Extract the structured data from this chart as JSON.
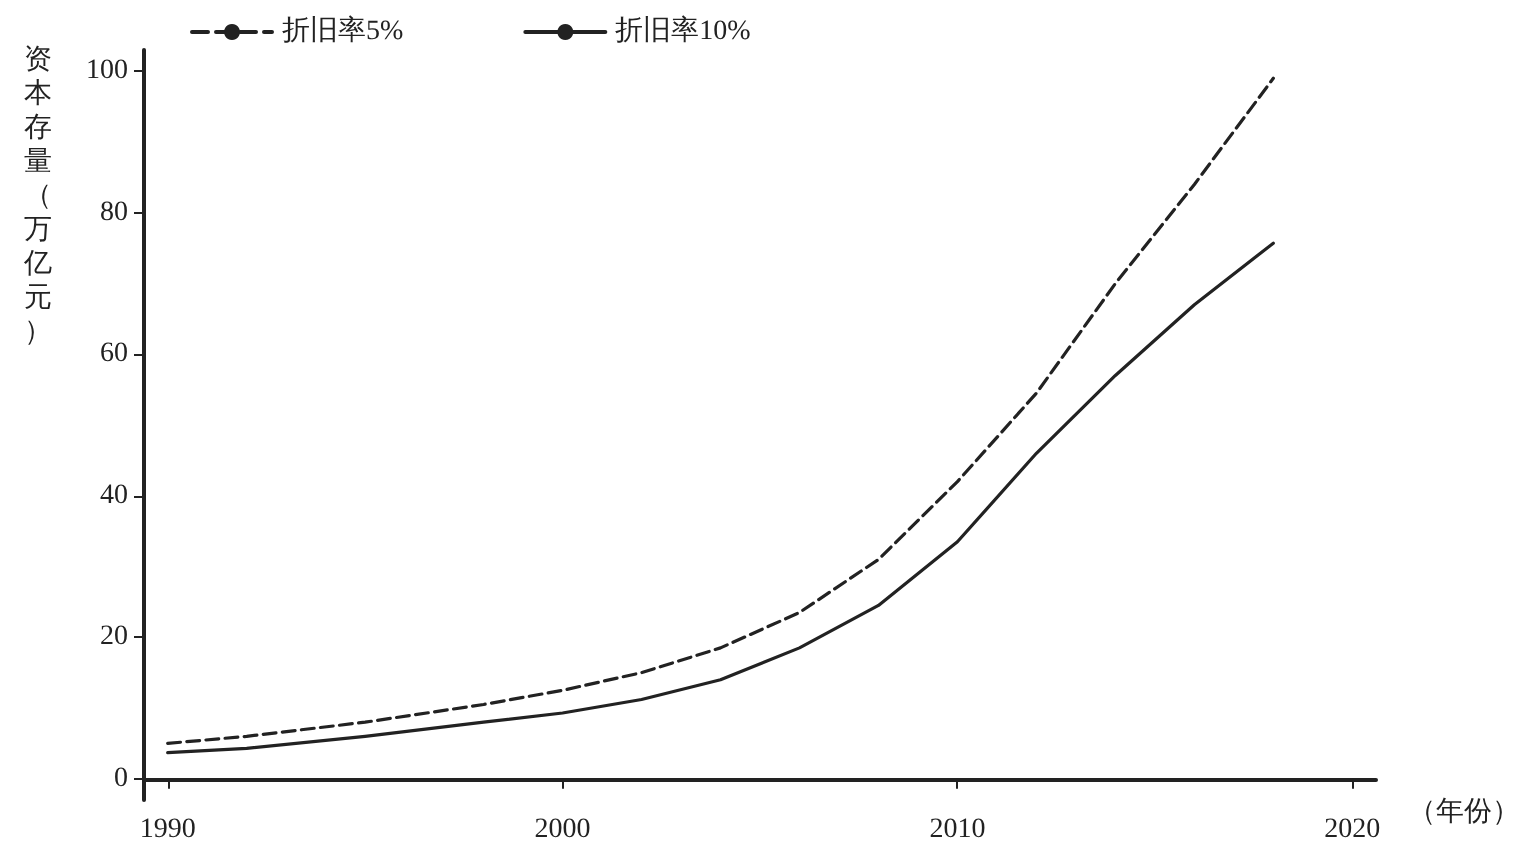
{
  "chart_data": {
    "type": "line",
    "ylabel": "资本存量（万亿元）",
    "xlabel": "（年份）",
    "x": [
      1990,
      1992,
      1995,
      1998,
      2000,
      2002,
      2004,
      2006,
      2008,
      2010,
      2012,
      2014,
      2016,
      2018
    ],
    "series": [
      {
        "name": "折旧率5%",
        "color": "#222222",
        "line_style": "dashed",
        "values": [
          5,
          6,
          8,
          10.5,
          12.5,
          15,
          18.5,
          23.5,
          31,
          42,
          54.5,
          70,
          84,
          99
        ]
      },
      {
        "name": "折旧率10%",
        "color": "#222222",
        "line_style": "solid",
        "values": [
          3.7,
          4.3,
          6,
          8,
          9.3,
          11.2,
          14,
          18.5,
          24.5,
          33.5,
          46,
          57,
          67,
          75.7
        ]
      }
    ],
    "xlim": [
      1989.4,
      2020.6
    ],
    "xticks": [
      1990,
      2000,
      2010,
      2020
    ],
    "ylim": [
      -3,
      103
    ],
    "yticks": [
      0,
      20,
      40,
      60,
      80,
      100
    ],
    "grid": false,
    "legend": "top left",
    "marker": "none"
  }
}
